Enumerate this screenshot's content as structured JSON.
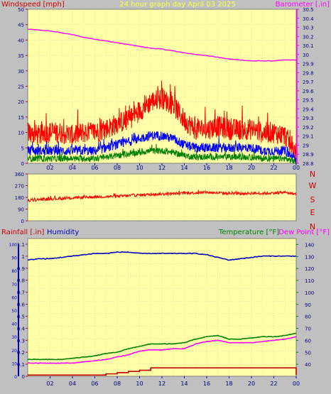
{
  "header": {
    "title": "24 hour graph day   April 03 2025",
    "left_label": "Windspeed [mph]",
    "right_label": "Barometer [.in]"
  },
  "hours": [
    "02",
    "04",
    "06",
    "08",
    "10",
    "12",
    "14",
    "16",
    "18",
    "20",
    "22",
    "00"
  ],
  "colors": {
    "background": "#c0c0c0",
    "plot_bg": "#ffffa8",
    "wind": "#ff0000",
    "avg_wind": "#0000ff",
    "low_wind": "#008000",
    "barometer": "#ff00ff",
    "direction": "#ff0000",
    "rain": "#c00000",
    "humidity": "#0000c0",
    "temperature": "#008000",
    "dewpoint": "#ff00ff"
  },
  "chart_data": [
    {
      "type": "line",
      "left_axis": {
        "label": "Windspeed [mph]",
        "ylim": [
          0,
          50
        ],
        "ticks": [
          0,
          5,
          10,
          15,
          20,
          25,
          30,
          35,
          40,
          45,
          50
        ]
      },
      "right_axis": {
        "label": "Barometer [.in]",
        "ylim": [
          28.8,
          30.5
        ],
        "ticks": [
          "28.8",
          "28.9",
          "29",
          "29.1",
          "29.2",
          "29.3",
          "29.4",
          "29.5",
          "29.6",
          "29.7",
          "29.8",
          "29.9",
          "30",
          "30.1",
          "30.2",
          "30.3",
          "30.4",
          "30.5"
        ]
      },
      "x": [
        0,
        1,
        2,
        3,
        4,
        5,
        6,
        7,
        8,
        9,
        10,
        11,
        12,
        13,
        14,
        15,
        16,
        17,
        18,
        19,
        20,
        21,
        22,
        23,
        24
      ],
      "series": [
        {
          "key": "gust",
          "values": [
            10,
            9,
            10,
            10,
            9,
            10,
            10,
            11,
            13,
            14,
            17,
            20,
            21,
            19,
            14,
            11,
            11,
            12,
            11,
            11,
            11,
            10,
            10,
            9,
            3
          ],
          "spread": 3.5
        },
        {
          "key": "avg",
          "values": [
            4,
            4,
            4,
            4,
            4,
            4,
            4,
            5,
            6,
            7,
            8,
            9,
            9,
            8,
            6,
            5,
            5,
            5,
            5,
            5,
            5,
            4,
            4,
            4,
            1
          ],
          "spread": 1.5
        },
        {
          "key": "low",
          "values": [
            1.5,
            1.5,
            1.5,
            1.5,
            1.5,
            1.5,
            1.5,
            2,
            2.5,
            3,
            3.5,
            4,
            4,
            3.5,
            2.5,
            2,
            2,
            2,
            2,
            2,
            2,
            1.5,
            1.5,
            1.5,
            0.5
          ],
          "spread": 1
        },
        {
          "key": "barometer",
          "values": [
            30.28,
            30.27,
            30.26,
            30.24,
            30.22,
            30.19,
            30.17,
            30.15,
            30.13,
            30.11,
            30.09,
            30.07,
            30.06,
            30.04,
            30.02,
            30.0,
            29.99,
            29.97,
            29.95,
            29.94,
            29.93,
            29.93,
            29.93,
            29.94,
            29.94
          ]
        }
      ]
    },
    {
      "type": "line",
      "left_axis": {
        "ylim": [
          0,
          360
        ],
        "ticks": [
          0,
          90,
          180,
          270,
          360
        ]
      },
      "right_labels": [
        "N",
        "W",
        "S",
        "E",
        "N"
      ],
      "x": [
        0,
        1,
        2,
        3,
        4,
        5,
        6,
        7,
        8,
        9,
        10,
        11,
        12,
        13,
        14,
        15,
        16,
        17,
        18,
        19,
        20,
        21,
        22,
        23,
        24
      ],
      "series": [
        {
          "key": "direction",
          "values": [
            155,
            162,
            168,
            170,
            175,
            180,
            183,
            186,
            188,
            193,
            198,
            202,
            206,
            208,
            212,
            215,
            218,
            214,
            210,
            208,
            212,
            210,
            214,
            218,
            205
          ],
          "spread": 22
        }
      ]
    },
    {
      "type": "line",
      "labels": {
        "rain": "Rainfall [.in]",
        "humidity": "Humidity",
        "temperature": "Temperature [°F]",
        "dewpoint": "Dew Point [°F]"
      },
      "left_axis": {
        "ylim": [
          0,
          1.0
        ],
        "ticks": [
          "0",
          "0.1",
          "0.2",
          "0.3",
          "0.4",
          "0.5",
          "0.6",
          "0.7",
          "0.8",
          "0.9",
          "1",
          "1.1"
        ],
        "humidity_ticks": [
          0,
          10,
          20,
          30,
          40,
          50,
          60,
          70,
          80,
          90,
          100
        ]
      },
      "right_axis": {
        "ylim": [
          30,
          145
        ],
        "ticks": [
          40,
          50,
          60,
          70,
          80,
          90,
          100,
          110,
          120,
          130,
          140
        ]
      },
      "x": [
        0,
        1,
        2,
        3,
        4,
        5,
        6,
        7,
        8,
        9,
        10,
        11,
        12,
        13,
        14,
        15,
        16,
        17,
        18,
        19,
        20,
        21,
        22,
        23,
        24
      ],
      "series": [
        {
          "key": "humidity",
          "values": [
            88,
            89,
            89,
            90,
            91,
            92,
            93,
            93,
            94,
            94,
            93,
            93,
            93,
            93,
            93,
            93,
            92,
            90,
            88,
            89,
            90,
            91,
            91,
            91,
            91
          ]
        },
        {
          "key": "temperature",
          "values": [
            44,
            44,
            44,
            44,
            45,
            46,
            47,
            49,
            50,
            53,
            55,
            57,
            57,
            57,
            58,
            61,
            63,
            64,
            61,
            61,
            62,
            63,
            63,
            64,
            66
          ]
        },
        {
          "key": "dewpoint",
          "values": [
            41,
            41,
            41,
            41,
            41,
            42,
            43,
            44,
            46,
            48,
            51,
            52,
            52,
            53,
            53,
            57,
            59,
            60,
            58,
            58,
            58,
            59,
            60,
            61,
            63
          ]
        },
        {
          "key": "rain",
          "values": [
            0.01,
            0.01,
            0.01,
            0.01,
            0.01,
            0.01,
            0.01,
            0.02,
            0.03,
            0.04,
            0.05,
            0.07,
            0.07,
            0.07,
            0.07,
            0.07,
            0.07,
            0.07,
            0.07,
            0.07,
            0.07,
            0.07,
            0.07,
            0.07,
            0.01
          ]
        }
      ]
    }
  ]
}
